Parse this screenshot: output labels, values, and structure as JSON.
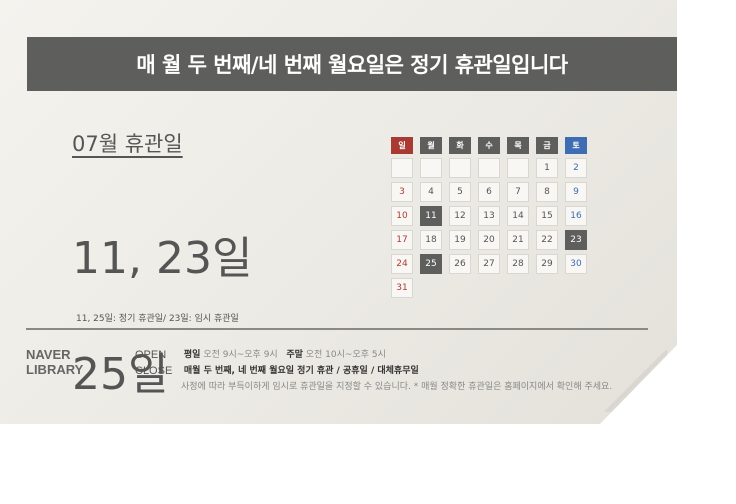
{
  "banner": "매 월 두 번째/네 번째 월요일은 정기 휴관일입니다",
  "month_title": "07월 휴관일",
  "big_days": [
    "11, 23일",
    "25일"
  ],
  "footnote": "11, 25일: 정기 휴관일/ 23일: 임시 휴관일",
  "brand": [
    "NAVER",
    "LIBRARY"
  ],
  "info": {
    "open_label": "OPEN",
    "open_weekday_label": "평일",
    "open_weekday_hours": "오전 9시~오후 9시",
    "open_weekend_label": "주말",
    "open_weekend_hours": "오전 10시~오후 5시",
    "close_label": "CLOSE",
    "close_text": "매월 두 번째, 네 번째 월요일 정기 휴관 / 공휴일 / 대체휴무일",
    "close_note": "사정에 따라 부득이하게 임시로 휴관일을 지정할 수 있습니다. * 매월 정확한 휴관일은 홈페이지에서 확인해 주세요."
  },
  "calendar": {
    "weekdays": [
      "일",
      "월",
      "화",
      "수",
      "목",
      "금",
      "토"
    ],
    "weekday_colors": [
      "#a83a33",
      "#5e5e5c",
      "#5e5e5c",
      "#5e5e5c",
      "#5e5e5c",
      "#5e5e5c",
      "#3f6db3"
    ],
    "days": [
      "",
      "",
      "",
      "",
      "",
      "1",
      "2",
      "3",
      "4",
      "5",
      "6",
      "7",
      "8",
      "9",
      "10",
      "11",
      "12",
      "13",
      "14",
      "15",
      "16",
      "17",
      "18",
      "19",
      "20",
      "21",
      "22",
      "23",
      "24",
      "25",
      "26",
      "27",
      "28",
      "29",
      "30",
      "31"
    ],
    "holidays": [
      "11",
      "23",
      "25"
    ]
  }
}
